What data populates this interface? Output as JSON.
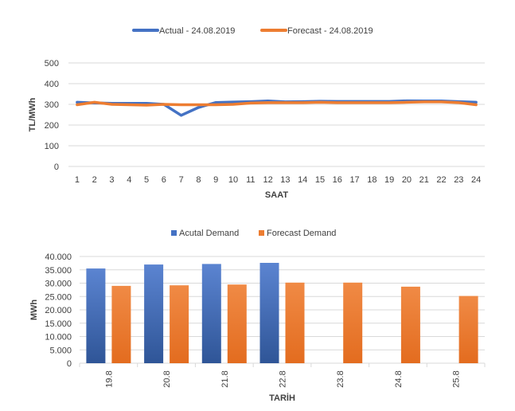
{
  "chart_data": [
    {
      "type": "line",
      "xlabel": "SAAT",
      "ylabel": "TL/MWh",
      "ylim": [
        0,
        500
      ],
      "yticks": [
        0,
        100,
        200,
        300,
        400,
        500
      ],
      "grid": true,
      "legend": "top",
      "x": [
        "1",
        "2",
        "3",
        "4",
        "5",
        "6",
        "7",
        "8",
        "9",
        "10",
        "11",
        "12",
        "13",
        "14",
        "15",
        "16",
        "17",
        "18",
        "19",
        "20",
        "21",
        "22",
        "23",
        "24"
      ],
      "series": [
        {
          "name": "Actual - 24.08.2019",
          "color": "#4472C4",
          "values": [
            310,
            307,
            305,
            305,
            305,
            300,
            247,
            285,
            309,
            311,
            313,
            316,
            312,
            313,
            315,
            314,
            314,
            314,
            314,
            317,
            316,
            316,
            313,
            310
          ]
        },
        {
          "name": "Forecast - 24.08.2019",
          "color": "#ED7D31",
          "values": [
            298,
            310,
            300,
            298,
            296,
            300,
            298,
            298,
            298,
            300,
            306,
            308,
            308,
            308,
            310,
            308,
            308,
            308,
            308,
            310,
            312,
            312,
            308,
            298
          ]
        }
      ]
    },
    {
      "type": "bar",
      "xlabel": "TARİH",
      "ylabel": "MWh",
      "ylim": [
        0,
        40000
      ],
      "yticks": [
        "0",
        "5.000",
        "10.000",
        "15.000",
        "20.000",
        "25.000",
        "30.000",
        "35.000",
        "40.000"
      ],
      "grid": true,
      "legend": "top",
      "categories": [
        "19.8",
        "20.8",
        "21.8",
        "22.8",
        "23.8",
        "24.8",
        "25.8"
      ],
      "series": [
        {
          "name": "Acutal Demand",
          "color": "#4472C4",
          "values": [
            35500,
            37000,
            37200,
            37600,
            null,
            null,
            null
          ]
        },
        {
          "name": "Forecast Demand",
          "color": "#ED7D31",
          "values": [
            29000,
            29200,
            29500,
            30200,
            30200,
            28700,
            25200
          ]
        }
      ]
    }
  ]
}
